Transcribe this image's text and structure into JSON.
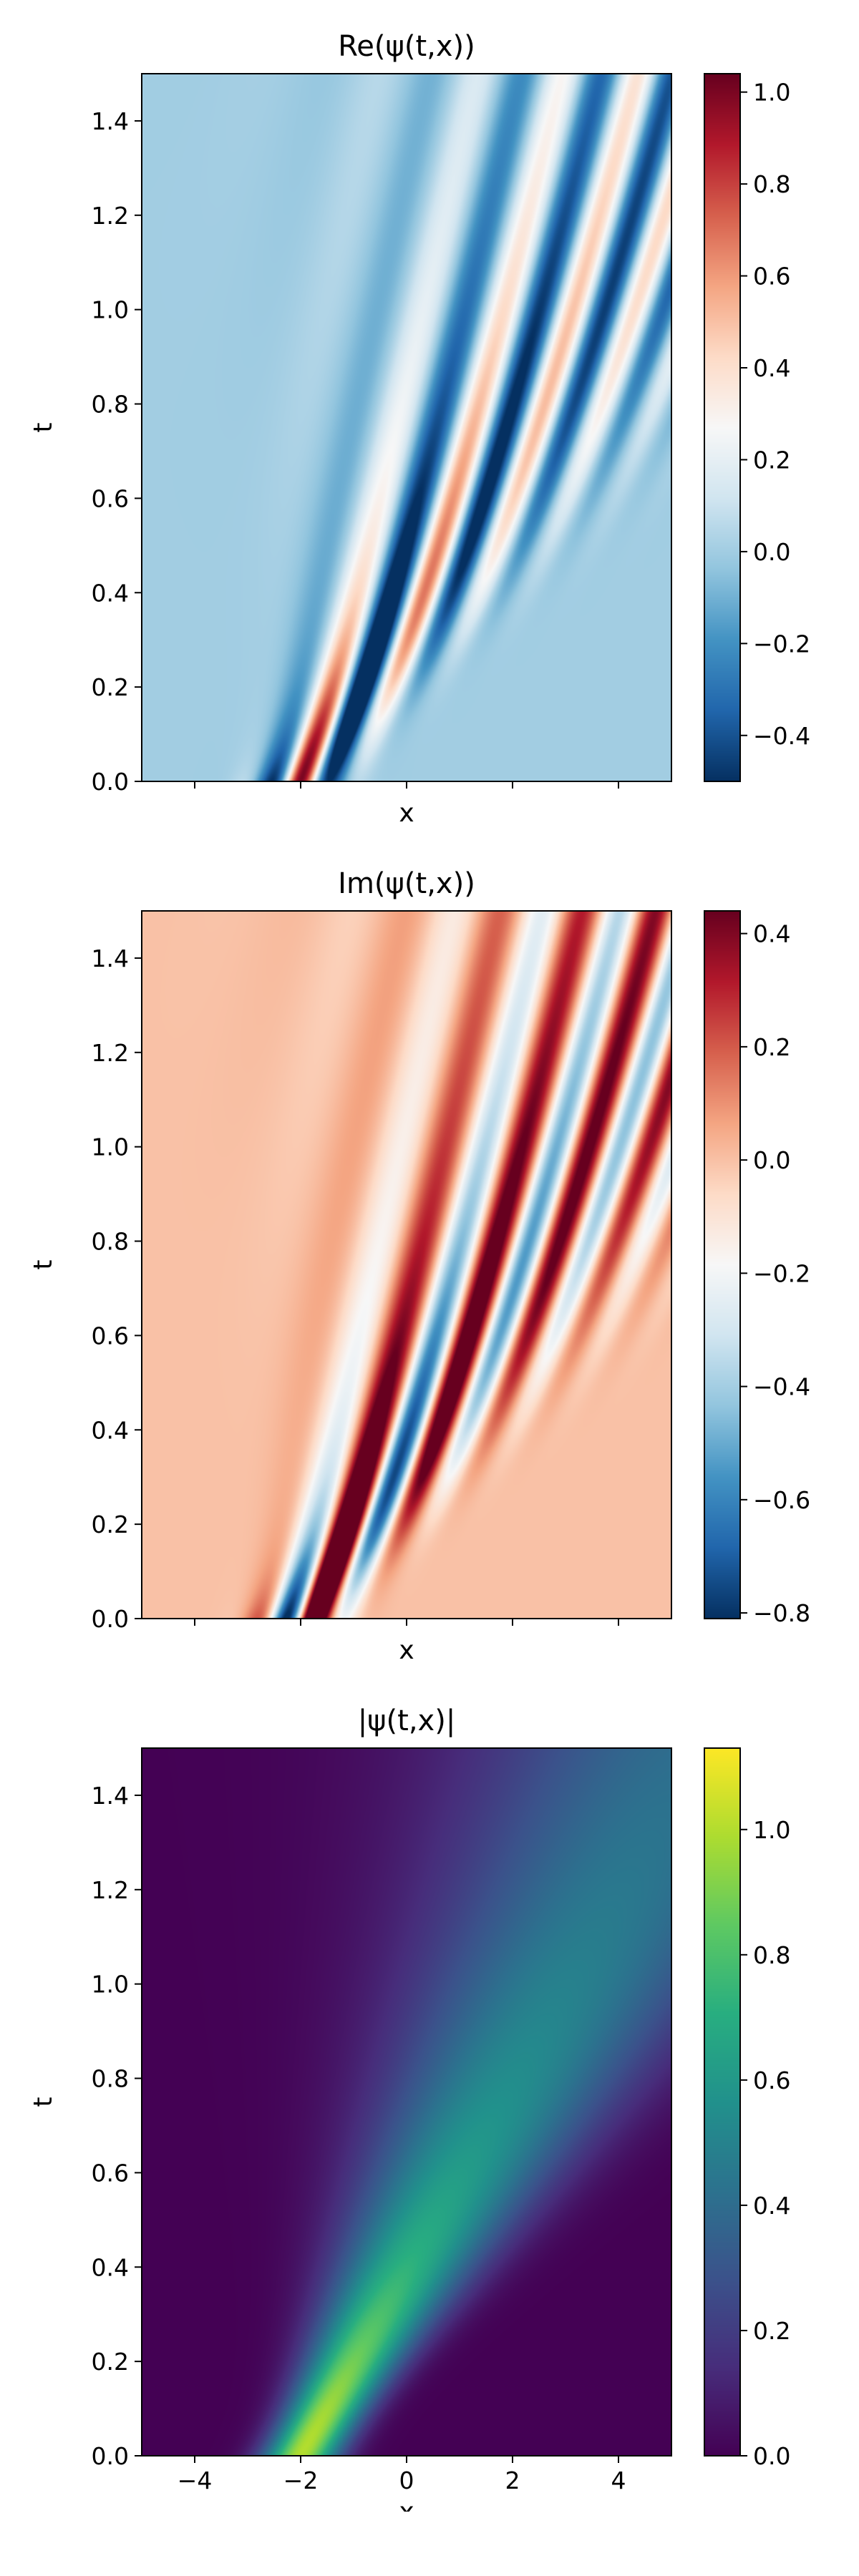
{
  "chart_data": [
    {
      "type": "heatmap",
      "title": "Re(ψ(t,x))",
      "xlabel": "x",
      "ylabel": "t",
      "xlim": [
        -5,
        5
      ],
      "ylim": [
        0,
        1.5
      ],
      "x_ticks": [
        -4,
        -2,
        0,
        2,
        4
      ],
      "x_tick_labels": [
        "",
        "",
        "",
        "",
        ""
      ],
      "y_ticks": [
        0.0,
        0.2,
        0.4,
        0.6,
        0.8,
        1.0,
        1.2,
        1.4
      ],
      "y_tick_labels": [
        "0.0",
        "0.2",
        "0.4",
        "0.6",
        "0.8",
        "1.0",
        "1.2",
        "1.4"
      ],
      "colormap": "RdBu_r",
      "clim": [
        -0.5,
        1.04
      ],
      "colorbar_ticks": [
        -0.4,
        -0.2,
        0.0,
        0.2,
        0.4,
        0.6,
        0.8,
        1.0
      ],
      "colorbar_tick_labels": [
        "−0.4",
        "−0.2",
        "0.0",
        "0.2",
        "0.4",
        "0.6",
        "0.8",
        "1.0"
      ],
      "component": "real",
      "grid": false
    },
    {
      "type": "heatmap",
      "title": "Im(ψ(t,x))",
      "xlabel": "x",
      "ylabel": "t",
      "xlim": [
        -5,
        5
      ],
      "ylim": [
        0,
        1.5
      ],
      "x_ticks": [
        -4,
        -2,
        0,
        2,
        4
      ],
      "x_tick_labels": [
        "",
        "",
        "",
        "",
        ""
      ],
      "y_ticks": [
        0.0,
        0.2,
        0.4,
        0.6,
        0.8,
        1.0,
        1.2,
        1.4
      ],
      "y_tick_labels": [
        "0.0",
        "0.2",
        "0.4",
        "0.6",
        "0.8",
        "1.0",
        "1.2",
        "1.4"
      ],
      "colormap": "RdBu_r",
      "clim": [
        -0.81,
        0.44
      ],
      "colorbar_ticks": [
        -0.8,
        -0.6,
        -0.4,
        -0.2,
        0.0,
        0.2,
        0.4
      ],
      "colorbar_tick_labels": [
        "−0.8",
        "−0.6",
        "−0.4",
        "−0.2",
        "0.0",
        "0.2",
        "0.4"
      ],
      "component": "imag",
      "grid": false
    },
    {
      "type": "heatmap",
      "title": "|ψ(t,x)|",
      "xlabel": "x",
      "ylabel": "t",
      "xlim": [
        -5,
        5
      ],
      "ylim": [
        0,
        1.5
      ],
      "x_ticks": [
        -4,
        -2,
        0,
        2,
        4
      ],
      "x_tick_labels": [
        "−4",
        "−2",
        "0",
        "2",
        "4"
      ],
      "y_ticks": [
        0.0,
        0.2,
        0.4,
        0.6,
        0.8,
        1.0,
        1.2,
        1.4
      ],
      "y_tick_labels": [
        "0.0",
        "0.2",
        "0.4",
        "0.6",
        "0.8",
        "1.0",
        "1.2",
        "1.4"
      ],
      "colormap": "viridis",
      "clim": [
        0.0,
        1.13
      ],
      "colorbar_ticks": [
        0.0,
        0.2,
        0.4,
        0.6,
        0.8,
        1.0
      ],
      "colorbar_tick_labels": [
        "0.0",
        "0.2",
        "0.4",
        "0.6",
        "0.8",
        "1.0"
      ],
      "component": "abs",
      "grid": false
    }
  ]
}
